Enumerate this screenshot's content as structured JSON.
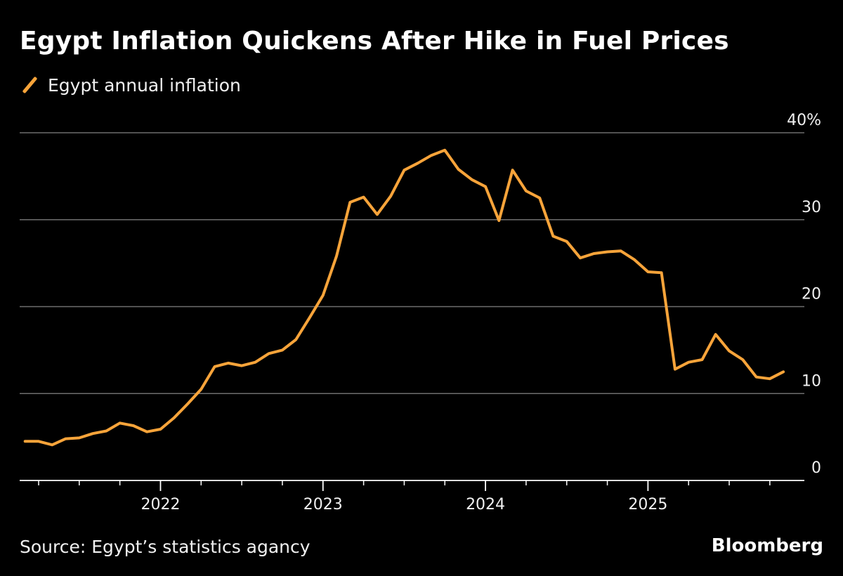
{
  "title": "Egypt Inflation Quickens After Hike in Fuel Prices",
  "source": "Source: Egypt’s statistics agancy",
  "brand": "Bloomberg",
  "colors": {
    "line": "#f8a43a",
    "grid": "#6e6e6e",
    "axis": "#ffffff",
    "background": "#000000"
  },
  "chart_data": {
    "type": "line",
    "title": "Egypt Inflation Quickens After Hike in Fuel Prices",
    "xlabel": "",
    "ylabel": "",
    "ylim": [
      0,
      40
    ],
    "y_ticks": [
      0,
      10,
      20,
      30,
      40
    ],
    "y_tick_labels": [
      "0",
      "10",
      "20",
      "30",
      "40%"
    ],
    "x_ticks": [
      "2022",
      "2023",
      "2024",
      "2025"
    ],
    "xlim": [
      "2021-02",
      "2025-12"
    ],
    "grid": true,
    "legend": "top-left",
    "series": [
      {
        "name": "Egypt annual inflation",
        "x": [
          "2021-03",
          "2021-04",
          "2021-05",
          "2021-06",
          "2021-07",
          "2021-08",
          "2021-09",
          "2021-10",
          "2021-11",
          "2021-12",
          "2022-01",
          "2022-02",
          "2022-03",
          "2022-04",
          "2022-05",
          "2022-06",
          "2022-07",
          "2022-08",
          "2022-09",
          "2022-10",
          "2022-11",
          "2022-12",
          "2023-01",
          "2023-02",
          "2023-03",
          "2023-04",
          "2023-05",
          "2023-06",
          "2023-07",
          "2023-08",
          "2023-09",
          "2023-10",
          "2023-11",
          "2023-12",
          "2024-01",
          "2024-02",
          "2024-03",
          "2024-04",
          "2024-05",
          "2024-06",
          "2024-07",
          "2024-08",
          "2024-09",
          "2024-10",
          "2024-11",
          "2024-12",
          "2025-01",
          "2025-02",
          "2025-03",
          "2025-04",
          "2025-05",
          "2025-06",
          "2025-07",
          "2025-08",
          "2025-09",
          "2025-10",
          "2025-11"
        ],
        "values": [
          4.5,
          4.5,
          4.1,
          4.8,
          4.9,
          5.4,
          5.7,
          6.6,
          6.3,
          5.6,
          5.9,
          7.2,
          8.8,
          10.5,
          13.1,
          13.5,
          13.2,
          13.6,
          14.6,
          15.0,
          16.2,
          18.7,
          21.3,
          25.8,
          32.0,
          32.6,
          30.6,
          32.7,
          35.7,
          36.5,
          37.4,
          38.0,
          35.8,
          34.6,
          33.8,
          29.9,
          35.7,
          33.3,
          32.5,
          28.1,
          27.5,
          25.6,
          26.1,
          26.3,
          26.4,
          25.4,
          24.0,
          23.9,
          12.8,
          13.6,
          13.9,
          16.8,
          14.9,
          13.9,
          11.9,
          11.7,
          12.5
        ]
      }
    ]
  }
}
